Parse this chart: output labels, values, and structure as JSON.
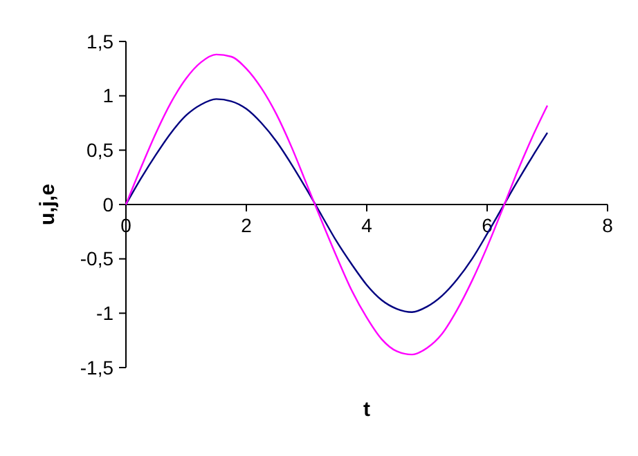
{
  "chart_data": {
    "type": "line",
    "xlabel": "t",
    "ylabel": "u,j,e",
    "x": [
      0,
      0.25,
      0.5,
      0.75,
      1,
      1.25,
      1.5,
      1.75,
      2,
      2.25,
      2.5,
      2.75,
      3,
      3.25,
      3.5,
      3.75,
      4,
      4.25,
      4.5,
      4.75,
      5,
      5.25,
      5.5,
      5.75,
      6,
      6.25,
      6.5,
      6.75,
      7
    ],
    "series": [
      {
        "color": "#000080",
        "values": [
          0,
          0.24,
          0.46,
          0.66,
          0.82,
          0.92,
          0.97,
          0.95,
          0.88,
          0.75,
          0.58,
          0.37,
          0.14,
          -0.1,
          -0.34,
          -0.55,
          -0.74,
          -0.88,
          -0.96,
          -0.99,
          -0.94,
          -0.84,
          -0.69,
          -0.5,
          -0.27,
          -0.03,
          0.21,
          0.44,
          0.66
        ]
      },
      {
        "color": "#ff00ff",
        "values": [
          0,
          0.34,
          0.66,
          0.94,
          1.16,
          1.31,
          1.38,
          1.36,
          1.25,
          1.07,
          0.83,
          0.53,
          0.19,
          -0.15,
          -0.48,
          -0.79,
          -1.04,
          -1.24,
          -1.35,
          -1.38,
          -1.32,
          -1.19,
          -0.97,
          -0.7,
          -0.39,
          -0.05,
          0.3,
          0.62,
          0.91
        ]
      }
    ],
    "xlim": [
      0,
      8
    ],
    "xticks": [
      0,
      2,
      4,
      6,
      8
    ],
    "ylim": [
      -1.5,
      1.5
    ],
    "yticks": [
      {
        "value": -1.5,
        "label": "-1,5"
      },
      -1,
      {
        "value": -0.5,
        "label": "-0,5"
      },
      0,
      {
        "value": 0.5,
        "label": "0,5"
      },
      1,
      {
        "value": 1.5,
        "label": "1,5"
      }
    ],
    "marker": "none",
    "line_style": "solid"
  }
}
